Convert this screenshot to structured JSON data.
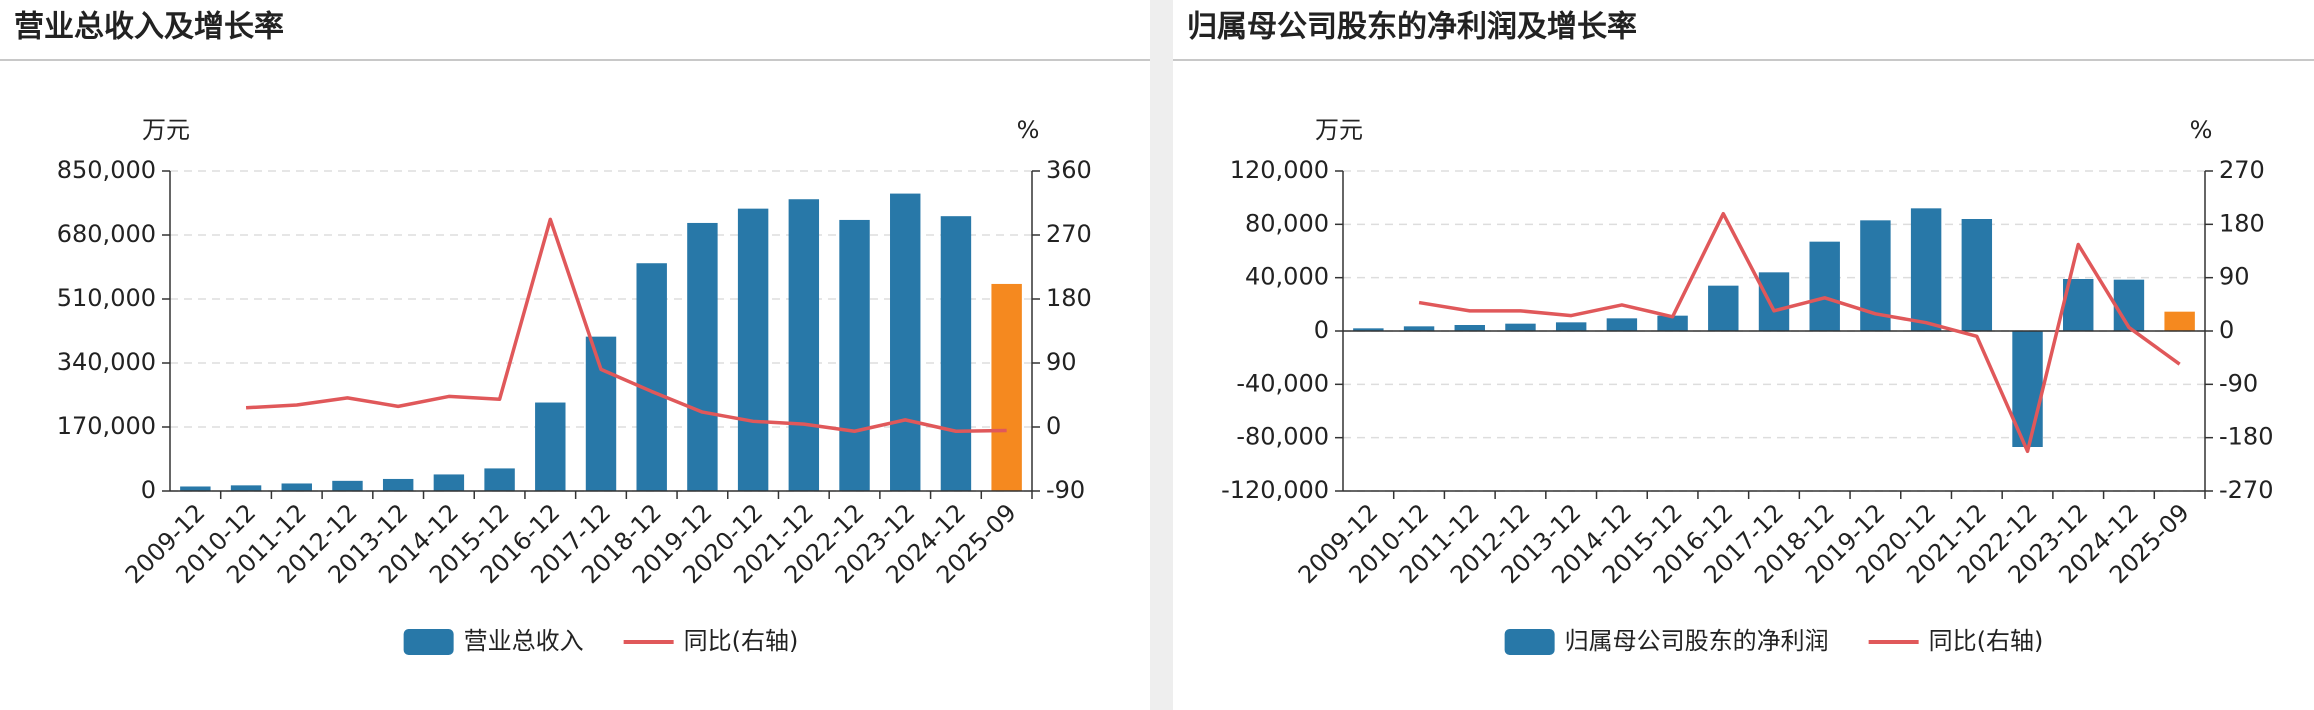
{
  "chart_data": [
    {
      "type": "bar_line",
      "title": "营业总收入及增长率",
      "y_unit": "万元",
      "y2_unit": "%",
      "categories": [
        "2009-12",
        "2010-12",
        "2011-12",
        "2012-12",
        "2013-12",
        "2014-12",
        "2015-12",
        "2016-12",
        "2017-12",
        "2018-12",
        "2019-12",
        "2020-12",
        "2021-12",
        "2022-12",
        "2023-12",
        "2024-12",
        "2025-09"
      ],
      "series": [
        {
          "name": "营业总收入",
          "kind": "bar",
          "color": "#2878a8",
          "colors": [
            "#2878a8",
            "#2878a8",
            "#2878a8",
            "#2878a8",
            "#2878a8",
            "#2878a8",
            "#2878a8",
            "#2878a8",
            "#2878a8",
            "#2878a8",
            "#2878a8",
            "#2878a8",
            "#2878a8",
            "#2878a8",
            "#2878a8",
            "#2878a8",
            "#f5891f"
          ],
          "values": [
            12000,
            15000,
            20000,
            27000,
            32000,
            44000,
            60000,
            235000,
            410000,
            605000,
            712000,
            750000,
            775000,
            720000,
            790000,
            730000,
            550000
          ]
        },
        {
          "name": "同比(右轴)",
          "kind": "line",
          "axis": "y2",
          "color": "#e0585a",
          "values": [
            null,
            27,
            31,
            41,
            29,
            43,
            39,
            292,
            81,
            50,
            21,
            8,
            4,
            -6,
            10,
            -6,
            -5
          ]
        }
      ],
      "ylim": [
        0,
        850000
      ],
      "yticks": [
        0,
        {
          "value": 170000,
          "label": "170,000"
        },
        {
          "value": 340000,
          "label": "340,000"
        },
        {
          "value": 510000,
          "label": "510,000"
        },
        {
          "value": 680000,
          "label": "680,000"
        },
        {
          "value": 850000,
          "label": "850,000"
        }
      ],
      "y2lim": [
        -90,
        360
      ],
      "y2ticks": [
        -90,
        0,
        90,
        180,
        270,
        360
      ],
      "grid": true
    },
    {
      "type": "bar_line",
      "title": "归属母公司股东的净利润及增长率",
      "y_unit": "万元",
      "y2_unit": "%",
      "categories": [
        "2009-12",
        "2010-12",
        "2011-12",
        "2012-12",
        "2013-12",
        "2014-12",
        "2015-12",
        "2016-12",
        "2017-12",
        "2018-12",
        "2019-12",
        "2020-12",
        "2021-12",
        "2022-12",
        "2023-12",
        "2024-12",
        "2025-09"
      ],
      "series": [
        {
          "name": "归属母公司股东的净利润",
          "kind": "bar",
          "color": "#2878a8",
          "colors": [
            "#2878a8",
            "#2878a8",
            "#2878a8",
            "#2878a8",
            "#2878a8",
            "#2878a8",
            "#2878a8",
            "#2878a8",
            "#2878a8",
            "#2878a8",
            "#2878a8",
            "#2878a8",
            "#2878a8",
            "#2878a8",
            "#2878a8",
            "#2878a8",
            "#f5891f"
          ],
          "values": [
            2000,
            3500,
            4500,
            5500,
            6500,
            9500,
            11500,
            34000,
            44000,
            67000,
            83000,
            92000,
            84000,
            -87000,
            39000,
            38500,
            14500
          ]
        },
        {
          "name": "同比(右轴)",
          "kind": "line",
          "axis": "y2",
          "color": "#e0585a",
          "values": [
            null,
            48,
            34,
            34,
            26,
            44,
            24,
            198,
            34,
            56,
            29,
            14,
            -9,
            -203,
            146,
            6,
            -56
          ]
        }
      ],
      "ylim": [
        -120000,
        120000
      ],
      "yticks": [
        {
          "value": -120000,
          "label": "-120,000"
        },
        {
          "value": -80000,
          "label": "-80,000"
        },
        {
          "value": -40000,
          "label": "-40,000"
        },
        0,
        {
          "value": 40000,
          "label": "40,000"
        },
        {
          "value": 80000,
          "label": "80,000"
        },
        {
          "value": 120000,
          "label": "120,000"
        }
      ],
      "y2lim": [
        -270,
        270
      ],
      "y2ticks": [
        -270,
        -180,
        -90,
        0,
        90,
        180,
        270
      ],
      "grid": true
    }
  ]
}
